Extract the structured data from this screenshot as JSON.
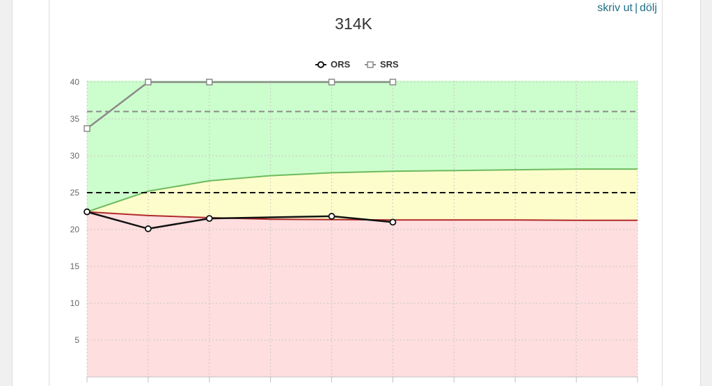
{
  "links": {
    "print_label": "skriv ut",
    "separator": "|",
    "hide_label": "dölj"
  },
  "chart_data": {
    "type": "line",
    "title": "314K",
    "xlabel": "",
    "ylabel": "",
    "ylim": [
      0,
      40
    ],
    "yticks": [
      5,
      10,
      15,
      20,
      25,
      30,
      35,
      40
    ],
    "x_slots": 9,
    "grid": true,
    "legend_position": "top-center",
    "series": [
      {
        "name": "ORS",
        "marker": "circle",
        "color": "#111111",
        "x": [
          0,
          1,
          2,
          4,
          5
        ],
        "values": [
          22.4,
          20.1,
          21.5,
          21.8,
          21.0
        ]
      },
      {
        "name": "SRS",
        "marker": "square",
        "color": "#8a8a8a",
        "x": [
          0,
          1,
          2,
          4,
          5
        ],
        "values": [
          33.7,
          40,
          40,
          40,
          40
        ]
      }
    ],
    "reference_lines": [
      {
        "value": 36,
        "color": "#8a8a8a",
        "style": "dashed"
      },
      {
        "value": 25,
        "color": "#111111",
        "style": "dashed"
      }
    ],
    "expected_curves": {
      "x": [
        0,
        1,
        2,
        3,
        4,
        5,
        6,
        7,
        8,
        9
      ],
      "upper": [
        22.4,
        25.2,
        26.6,
        27.3,
        27.7,
        27.9,
        28.0,
        28.1,
        28.2,
        28.2
      ],
      "lower": [
        22.4,
        21.9,
        21.6,
        21.4,
        21.35,
        21.3,
        21.3,
        21.3,
        21.25,
        21.25
      ]
    },
    "zone_colors": {
      "green": "#ccfdcc",
      "yellow": "#fdfdcc",
      "red": "#fedede",
      "upper_curve": "#6cbb5e",
      "lower_curve": "#b02a2a"
    }
  }
}
